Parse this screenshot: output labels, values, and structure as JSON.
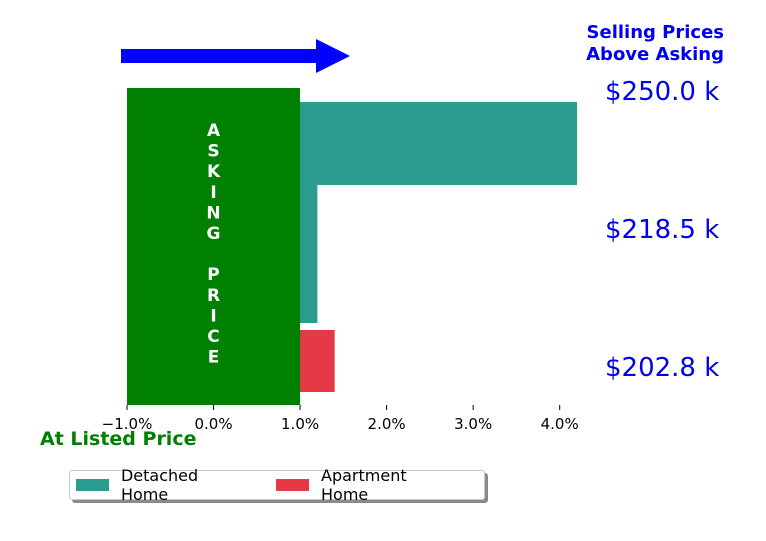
{
  "chart_data": {
    "type": "bar",
    "orientation": "horizontal",
    "x_ticks": [
      "−1.0%",
      "0.0%",
      "1.0%",
      "2.0%",
      "3.0%",
      "4.0%"
    ],
    "x_tick_values": [
      -1.0,
      0.0,
      1.0,
      2.0,
      3.0,
      4.0
    ],
    "xlim": [
      -1.0,
      4.2
    ],
    "series": [
      {
        "name": "Detached Home",
        "color": "#2a9d8f",
        "bars": [
          {
            "price_label": "$250.0 k",
            "value": 4.2
          },
          {
            "price_label": "$218.5 k",
            "value": 1.2
          }
        ]
      },
      {
        "name": "Apartment Home",
        "color": "#e63946",
        "bars": [
          {
            "price_label": "$202.8 k",
            "value": 1.4
          }
        ]
      }
    ],
    "asking_price_band": {
      "from": -1.0,
      "to": 1.0,
      "color": "#008000",
      "text": "ASKING PRICE"
    },
    "annotations": {
      "selling_above_title": [
        "Selling Prices",
        "Above Asking"
      ],
      "selling_above_color": "#0000ee",
      "at_listed_label": "At Listed Price",
      "at_listed_color": "#008000",
      "arrow_color": "#0000ff"
    },
    "price_labels": [
      "$250.0 k",
      "$218.5 k",
      "$202.8 k"
    ],
    "legend": {
      "placement": "bottom-left",
      "entries": [
        "Detached Home",
        "Apartment Home"
      ]
    },
    "grid": false
  }
}
